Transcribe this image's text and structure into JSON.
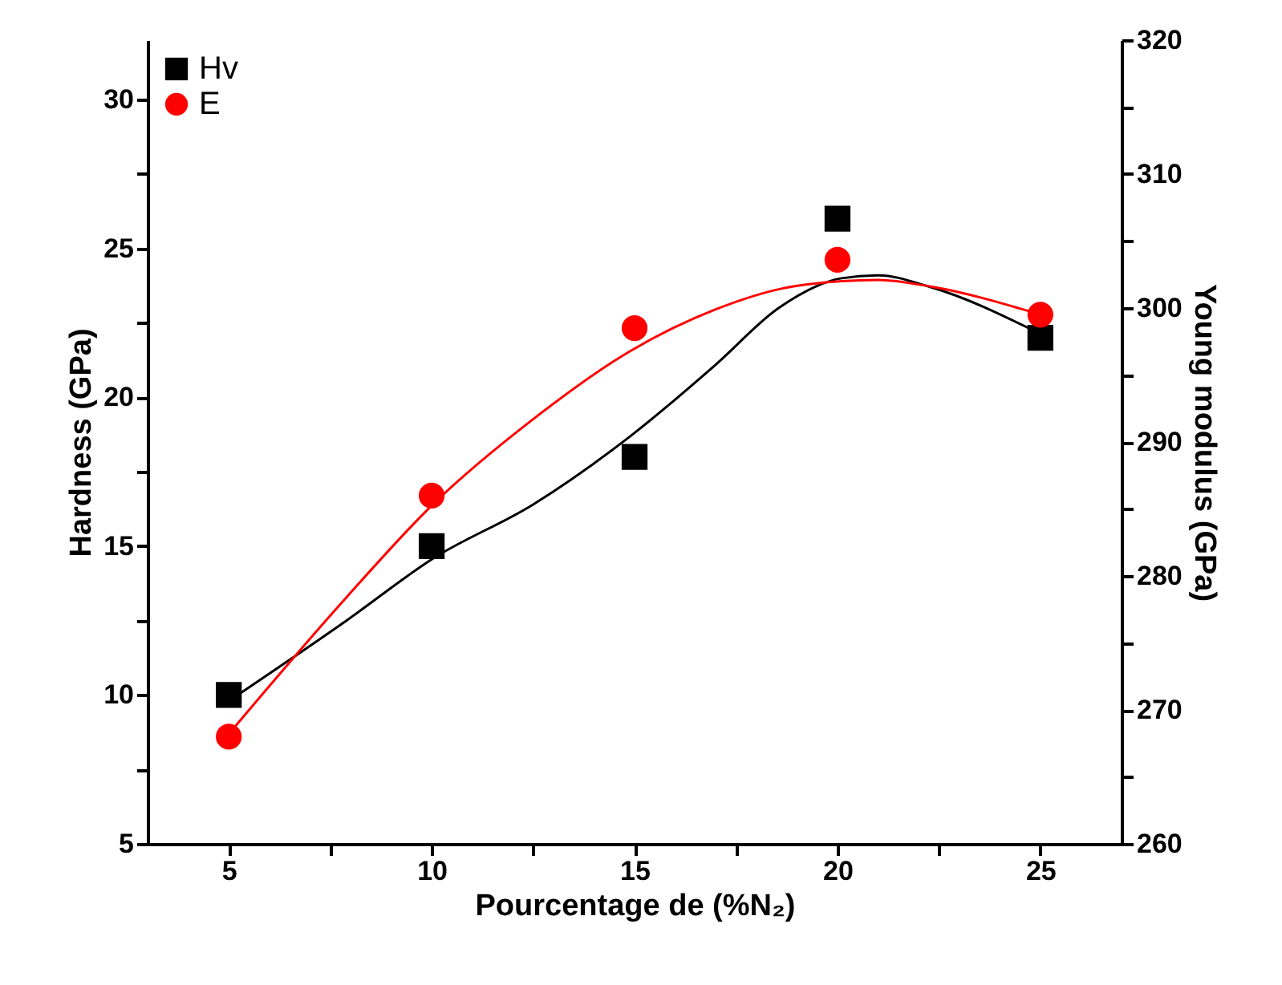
{
  "chart_data": {
    "type": "scatter",
    "xlabel": "Pourcentage de (%N₂)",
    "ylabel": "Hardness (GPa)",
    "y2label": "Young modulus (GPa)",
    "xlim": [
      3,
      27
    ],
    "xticks": [
      5,
      {
        "value": 7.5,
        "label": null
      },
      10,
      {
        "value": 12.5,
        "label": null
      },
      15,
      {
        "value": 17.5,
        "label": null
      },
      20,
      {
        "value": 22.5,
        "label": null
      },
      25
    ],
    "ylim": [
      5,
      32
    ],
    "yticks": [
      5,
      {
        "value": 7.5,
        "label": null
      },
      10,
      {
        "value": 12.5,
        "label": null
      },
      15,
      {
        "value": 17.5,
        "label": null
      },
      20,
      {
        "value": 22.5,
        "label": null
      },
      25,
      {
        "value": 27.5,
        "label": null
      },
      30
    ],
    "y2lim": [
      260,
      320
    ],
    "y2ticks": [
      260,
      {
        "value": 265,
        "label": null
      },
      270,
      {
        "value": 275,
        "label": null
      },
      280,
      {
        "value": 285,
        "label": null
      },
      290,
      {
        "value": 295,
        "label": null
      },
      300,
      {
        "value": 305,
        "label": null
      },
      310,
      {
        "value": 315,
        "label": null
      },
      320
    ],
    "grid": false,
    "legend": "top left",
    "series": [
      {
        "name": "Hv",
        "marker": "square",
        "color": "#000000",
        "x": [
          5,
          10,
          15,
          20,
          25
        ],
        "values": [
          10,
          15,
          18,
          26,
          22
        ]
      },
      {
        "type": "line",
        "marker": "none",
        "line_style": "solid",
        "color": "#000000",
        "x": [
          5,
          7.9,
          10.05,
          12.5,
          14.9,
          17.0,
          18.55,
          20.1,
          21.0,
          22.3,
          24.9
        ],
        "values": [
          9.8,
          12.5,
          14.6,
          16.4,
          18.7,
          21.1,
          23.0,
          24.0,
          24.1,
          23.7,
          22.2
        ]
      },
      {
        "name": "E",
        "marker": "circle",
        "axis": "y2",
        "color": "#ff0000",
        "x": [
          5,
          10,
          15,
          20,
          25
        ],
        "values": [
          268,
          286,
          298.5,
          303.6,
          299.5
        ]
      },
      {
        "type": "line",
        "marker": "none",
        "line_style": "solid",
        "axis": "y2",
        "color": "#ff0000",
        "x": [
          5,
          7.9,
          10.05,
          12.5,
          14.9,
          17.0,
          18.55,
          20.1,
          21.0,
          22.3,
          24.9
        ],
        "values": [
          268.2,
          278.4,
          285.4,
          291.7,
          296.8,
          299.9,
          301.4,
          302.0,
          302.1,
          301.6,
          299.6
        ]
      }
    ]
  }
}
